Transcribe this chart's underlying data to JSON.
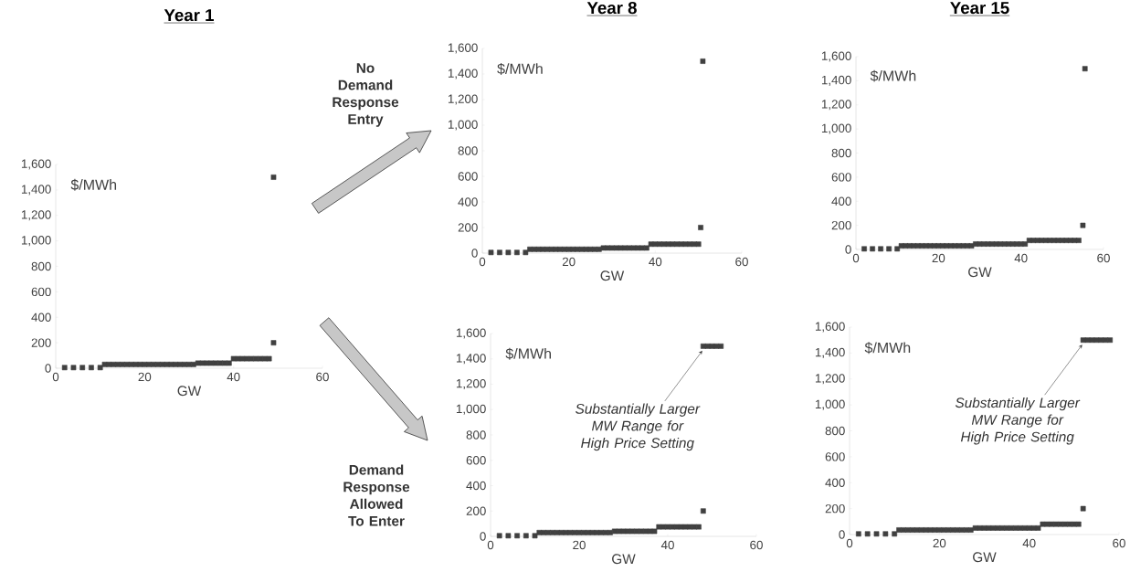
{
  "chart_data": [
    {
      "type": "scatter",
      "title": "Year 1",
      "xlabel": "GW",
      "ylabel": "$/MWh",
      "marker": "square",
      "xlim": [
        0,
        60
      ],
      "ylim": [
        0,
        1600
      ],
      "xticks": [
        0,
        20,
        40,
        60
      ],
      "yticks": [
        0,
        200,
        400,
        600,
        800,
        {
          "value": 1000,
          "label": "1,000"
        },
        {
          "value": 1200,
          "label": "1,200"
        },
        {
          "value": 1400,
          "label": "1,400"
        },
        {
          "value": 1600,
          "label": "1,600"
        }
      ],
      "series": [
        {
          "color": "#404040",
          "x": [
            2,
            4,
            6,
            8,
            10,
            11,
            12,
            13,
            14,
            15,
            16,
            17,
            18,
            19,
            20,
            21,
            22,
            23,
            24,
            25,
            26,
            27,
            28,
            29,
            30,
            31,
            32,
            33,
            34,
            35,
            36,
            37,
            38,
            39,
            40,
            41,
            42,
            43,
            44,
            45,
            46,
            47,
            48,
            49,
            49
          ],
          "values": [
            5,
            5,
            5,
            5,
            5,
            30,
            30,
            30,
            30,
            30,
            30,
            30,
            30,
            30,
            30,
            30,
            30,
            30,
            30,
            30,
            30,
            30,
            30,
            30,
            30,
            30,
            40,
            40,
            40,
            40,
            40,
            40,
            40,
            40,
            75,
            75,
            75,
            75,
            75,
            75,
            75,
            75,
            75,
            200,
            1500
          ]
        }
      ]
    },
    {
      "type": "scatter",
      "title": "Year 8",
      "xlabel": "GW",
      "ylabel": "$/MWh",
      "marker": "square",
      "xlim": [
        0,
        60
      ],
      "ylim": [
        0,
        1600
      ],
      "xticks": [
        0,
        20,
        40,
        60
      ],
      "yticks": [
        0,
        200,
        400,
        600,
        800,
        {
          "value": 1000,
          "label": "1,000"
        },
        {
          "value": 1200,
          "label": "1,200"
        },
        {
          "value": 1400,
          "label": "1,400"
        },
        {
          "value": 1600,
          "label": "1,600"
        }
      ],
      "annotations": [
        "No Demand Response Entry"
      ],
      "series": [
        {
          "color": "#404040",
          "x": [
            2,
            4,
            6,
            8,
            10,
            11,
            12,
            13,
            14,
            15,
            16,
            17,
            18,
            19,
            20,
            21,
            22,
            23,
            24,
            25,
            26,
            27,
            28,
            29,
            30,
            31,
            32,
            33,
            34,
            35,
            36,
            37,
            38,
            39,
            40,
            41,
            42,
            43,
            44,
            45,
            46,
            47,
            48,
            49,
            50,
            50.5,
            51
          ],
          "values": [
            5,
            5,
            5,
            5,
            5,
            30,
            30,
            30,
            30,
            30,
            30,
            30,
            30,
            30,
            30,
            30,
            30,
            30,
            30,
            30,
            30,
            30,
            40,
            40,
            40,
            40,
            40,
            40,
            40,
            40,
            40,
            40,
            40,
            70,
            70,
            70,
            70,
            70,
            70,
            70,
            70,
            70,
            70,
            70,
            70,
            200,
            1500
          ]
        }
      ]
    },
    {
      "type": "scatter",
      "title": "Year 15",
      "xlabel": "GW",
      "ylabel": "$/MWh",
      "marker": "square",
      "xlim": [
        0,
        60
      ],
      "ylim": [
        0,
        1600
      ],
      "xticks": [
        0,
        20,
        40,
        60
      ],
      "yticks": [
        0,
        200,
        400,
        600,
        800,
        {
          "value": 1000,
          "label": "1,000"
        },
        {
          "value": 1200,
          "label": "1,200"
        },
        {
          "value": 1400,
          "label": "1,400"
        },
        {
          "value": 1600,
          "label": "1,600"
        }
      ],
      "series": [
        {
          "color": "#404040",
          "x": [
            2,
            4,
            6,
            8,
            10,
            11,
            12,
            13,
            14,
            15,
            16,
            17,
            18,
            19,
            20,
            21,
            22,
            23,
            24,
            25,
            26,
            27,
            28,
            29,
            30,
            31,
            32,
            33,
            34,
            35,
            36,
            37,
            38,
            39,
            40,
            41,
            42,
            43,
            44,
            45,
            46,
            47,
            48,
            49,
            50,
            51,
            52,
            53,
            54,
            55,
            55.5
          ],
          "values": [
            5,
            5,
            5,
            5,
            5,
            30,
            30,
            30,
            30,
            30,
            30,
            30,
            30,
            30,
            30,
            30,
            30,
            30,
            30,
            30,
            30,
            30,
            30,
            45,
            45,
            45,
            45,
            45,
            45,
            45,
            45,
            45,
            45,
            45,
            45,
            45,
            75,
            75,
            75,
            75,
            75,
            75,
            75,
            75,
            75,
            75,
            75,
            75,
            75,
            200,
            1500
          ]
        }
      ]
    },
    {
      "type": "scatter",
      "xlabel": "GW",
      "ylabel": "$/MWh",
      "marker": "square",
      "xlim": [
        0,
        60
      ],
      "ylim": [
        0,
        1600
      ],
      "xticks": [
        0,
        20,
        40,
        60
      ],
      "yticks": [
        0,
        200,
        400,
        600,
        800,
        {
          "value": 1000,
          "label": "1,000"
        },
        {
          "value": 1200,
          "label": "1,200"
        },
        {
          "value": 1400,
          "label": "1,400"
        },
        {
          "value": 1600,
          "label": "1,600"
        }
      ],
      "annotations": [
        "Demand Response Allowed To Enter",
        {
          "text": "Substantially Larger MW Range for High Price Setting",
          "x": 48,
          "y": 1500
        }
      ],
      "series": [
        {
          "color": "#404040",
          "x": [
            2,
            4,
            6,
            8,
            10,
            11,
            12,
            13,
            14,
            15,
            16,
            17,
            18,
            19,
            20,
            21,
            22,
            23,
            24,
            25,
            26,
            27,
            28,
            29,
            30,
            31,
            32,
            33,
            34,
            35,
            36,
            37,
            38,
            39,
            40,
            41,
            42,
            43,
            44,
            45,
            46,
            47,
            48,
            48,
            49,
            50,
            51,
            52
          ],
          "values": [
            5,
            5,
            5,
            5,
            5,
            30,
            30,
            30,
            30,
            30,
            30,
            30,
            30,
            30,
            30,
            30,
            30,
            30,
            30,
            30,
            30,
            30,
            40,
            40,
            40,
            40,
            40,
            40,
            40,
            40,
            40,
            40,
            75,
            75,
            75,
            75,
            75,
            75,
            75,
            75,
            75,
            75,
            200,
            1500,
            1500,
            1500,
            1500,
            1500
          ]
        }
      ]
    },
    {
      "type": "scatter",
      "xlabel": "GW",
      "ylabel": "$/MWh",
      "marker": "square",
      "xlim": [
        0,
        60
      ],
      "ylim": [
        0,
        1600
      ],
      "xticks": [
        0,
        20,
        40,
        60
      ],
      "yticks": [
        0,
        200,
        400,
        600,
        800,
        {
          "value": 1000,
          "label": "1,000"
        },
        {
          "value": 1200,
          "label": "1,200"
        },
        {
          "value": 1400,
          "label": "1,400"
        },
        {
          "value": 1600,
          "label": "1,600"
        }
      ],
      "annotations": [
        {
          "text": "Substantially Larger MW Range for High Price Setting",
          "x": 52,
          "y": 1500
        }
      ],
      "series": [
        {
          "color": "#404040",
          "x": [
            2,
            4,
            6,
            8,
            10,
            11,
            12,
            13,
            14,
            15,
            16,
            17,
            18,
            19,
            20,
            21,
            22,
            23,
            24,
            25,
            26,
            27,
            28,
            29,
            30,
            31,
            32,
            33,
            34,
            35,
            36,
            37,
            38,
            39,
            40,
            41,
            42,
            43,
            44,
            45,
            46,
            47,
            48,
            49,
            50,
            51,
            52,
            52,
            53,
            54,
            55,
            56,
            57,
            58
          ],
          "values": [
            5,
            5,
            5,
            5,
            5,
            35,
            35,
            35,
            35,
            35,
            35,
            35,
            35,
            35,
            35,
            35,
            35,
            35,
            35,
            35,
            35,
            35,
            50,
            50,
            50,
            50,
            50,
            50,
            50,
            50,
            50,
            50,
            50,
            50,
            50,
            50,
            50,
            80,
            80,
            80,
            80,
            80,
            80,
            80,
            80,
            80,
            200,
            1500,
            1500,
            1500,
            1500,
            1500,
            1500,
            1500
          ]
        }
      ]
    }
  ]
}
